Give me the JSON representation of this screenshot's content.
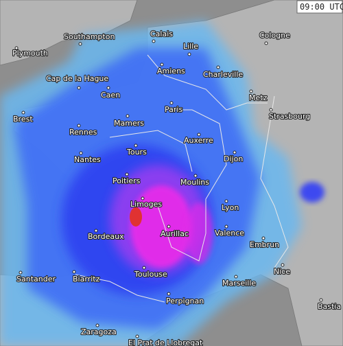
{
  "time_label": "09:00 UTC",
  "cities": [
    {
      "name": "Southampton"
    },
    {
      "name": "Calais"
    },
    {
      "name": "Cologne"
    },
    {
      "name": "Plymouth"
    },
    {
      "name": "Lille"
    },
    {
      "name": "Amiens"
    },
    {
      "name": "Charleville"
    },
    {
      "name": "Cap de la Hague"
    },
    {
      "name": "Caen"
    },
    {
      "name": "Metz"
    },
    {
      "name": "Paris"
    },
    {
      "name": "Strasbourg"
    },
    {
      "name": "Brest"
    },
    {
      "name": "Mamers"
    },
    {
      "name": "Rennes"
    },
    {
      "name": "Auxerre"
    },
    {
      "name": "Tours"
    },
    {
      "name": "Nantes"
    },
    {
      "name": "Dijon"
    },
    {
      "name": "Poitiers"
    },
    {
      "name": "Moulins"
    },
    {
      "name": "Limoges"
    },
    {
      "name": "Lyon"
    },
    {
      "name": "Aurillac"
    },
    {
      "name": "Bordeaux"
    },
    {
      "name": "Valence"
    },
    {
      "name": "Embrun"
    },
    {
      "name": "Toulouse"
    },
    {
      "name": "Nice"
    },
    {
      "name": "Santander"
    },
    {
      "name": "Biarritz"
    },
    {
      "name": "Marseille"
    },
    {
      "name": "Perpignan"
    },
    {
      "name": "Bastia"
    },
    {
      "name": "Zaragoza"
    },
    {
      "name": "El Prat de Llobregat"
    }
  ]
}
